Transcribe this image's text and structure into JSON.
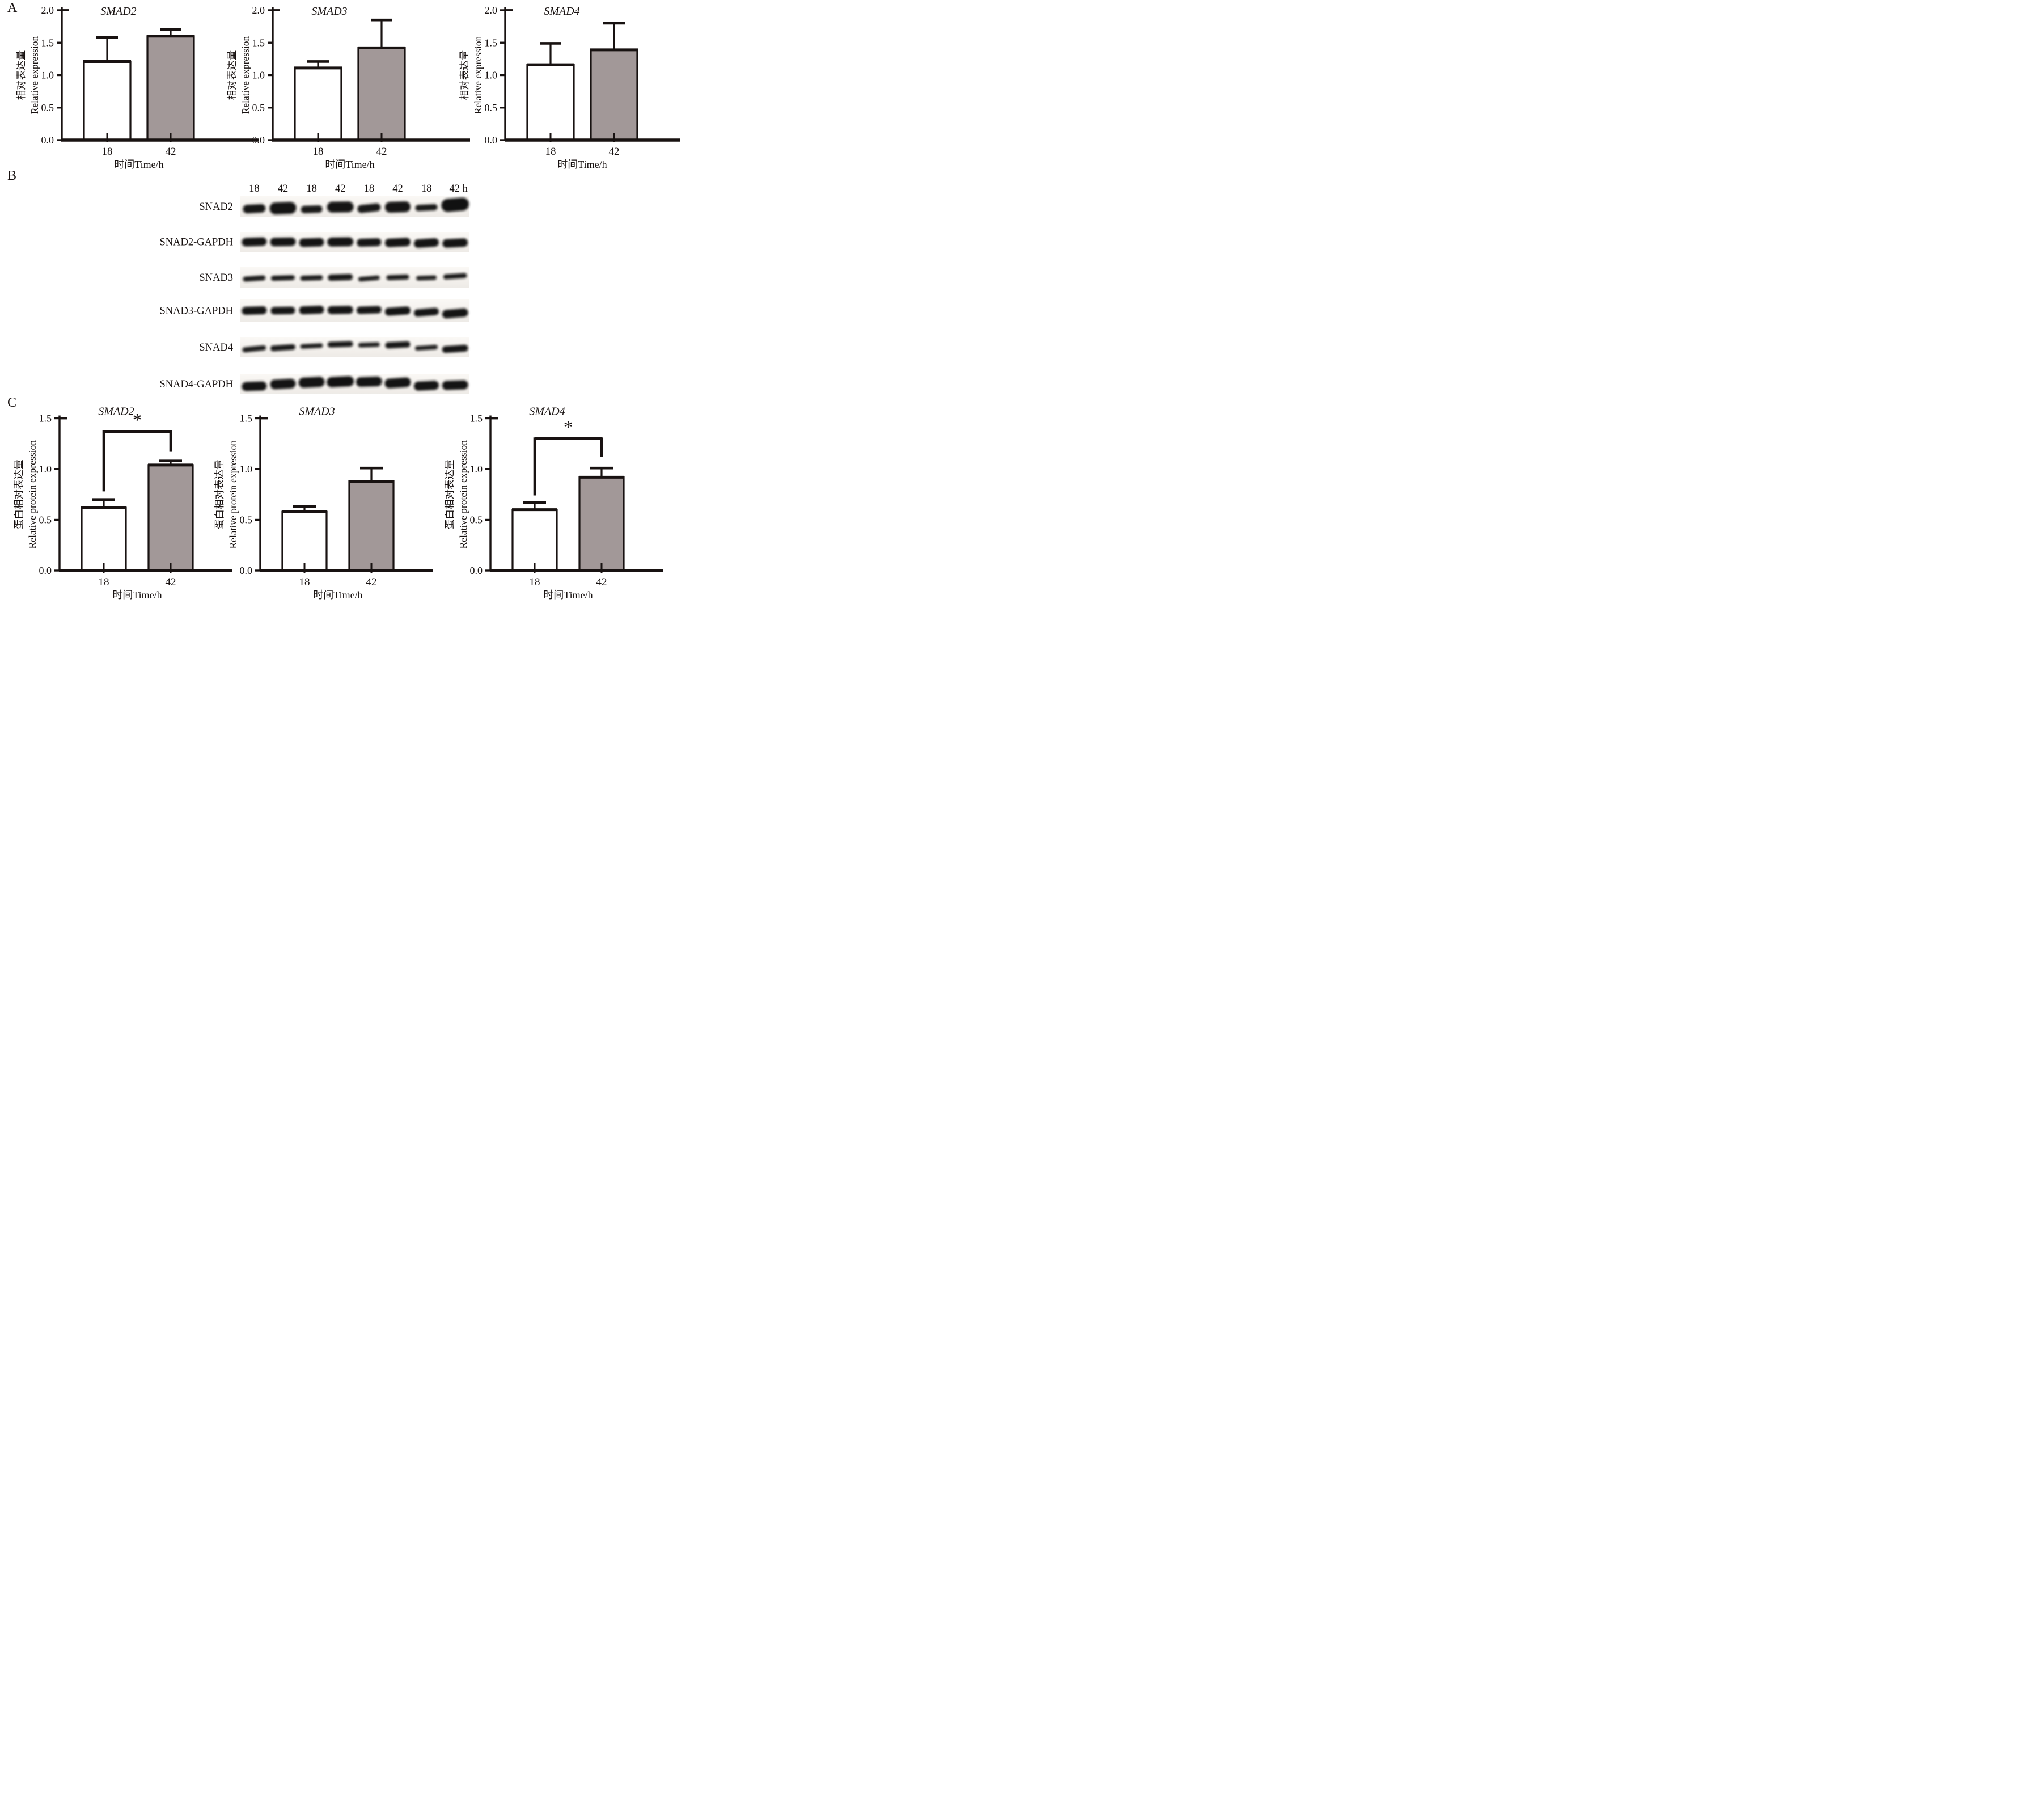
{
  "panels": {
    "a": "A",
    "b": "B",
    "c": "C"
  },
  "colors": {
    "ink": "#181211",
    "bar_fill_18": "#ffffff",
    "bar_fill_42": "#a29898",
    "blot_bg_light": "#faf8f5",
    "blot_bg_dark": "#eeebe7",
    "band": "#0b0908"
  },
  "chart_data": [
    {
      "id": "a-smad2",
      "panel": "A",
      "type": "bar",
      "title": "SMAD2",
      "categories": [
        "18",
        "42"
      ],
      "values": [
        1.21,
        1.6
      ],
      "errors_plus": [
        0.37,
        0.1
      ],
      "ylim": [
        0,
        2.0
      ],
      "yticks": [
        "0.0",
        "0.5",
        "1.0",
        "1.5",
        "2.0"
      ],
      "xlabel": "时间Time/h",
      "ylabel_cn": "相对表达量",
      "ylabel_en": "Relative expression",
      "significance": null
    },
    {
      "id": "a-smad3",
      "panel": "A",
      "type": "bar",
      "title": "SMAD3",
      "categories": [
        "18",
        "42"
      ],
      "values": [
        1.11,
        1.42
      ],
      "errors_plus": [
        0.1,
        0.43
      ],
      "ylim": [
        0,
        2.0
      ],
      "yticks": [
        "0.0",
        "0.5",
        "1.0",
        "1.5",
        "2.0"
      ],
      "xlabel": "时间Time/h",
      "ylabel_cn": "相对表达量",
      "ylabel_en": "Relative expression",
      "significance": null
    },
    {
      "id": "a-smad4",
      "panel": "A",
      "type": "bar",
      "title": "SMAD4",
      "categories": [
        "18",
        "42"
      ],
      "values": [
        1.16,
        1.39
      ],
      "errors_plus": [
        0.33,
        0.41
      ],
      "ylim": [
        0,
        2.0
      ],
      "yticks": [
        "0.0",
        "0.5",
        "1.0",
        "1.5",
        "2.0"
      ],
      "xlabel": "时间Time/h",
      "ylabel_cn": "相对表达量",
      "ylabel_en": "Relative expression",
      "significance": null
    },
    {
      "id": "c-smad2",
      "panel": "C",
      "type": "bar",
      "title": "SMAD2",
      "categories": [
        "18",
        "42"
      ],
      "values": [
        0.62,
        1.04
      ],
      "errors_plus": [
        0.08,
        0.04
      ],
      "ylim": [
        0,
        1.5
      ],
      "yticks": [
        "0.0",
        "0.5",
        "1.0",
        "1.5"
      ],
      "xlabel": "时间Time/h",
      "ylabel_cn": "蛋白相对表达量",
      "ylabel_en": "Relative protein expression",
      "significance": {
        "label": "*",
        "bracket_y": 1.37,
        "left_drop_to": 0.78,
        "right_drop_to": 1.17
      }
    },
    {
      "id": "c-smad3",
      "panel": "C",
      "type": "bar",
      "title": "SMAD3",
      "categories": [
        "18",
        "42"
      ],
      "values": [
        0.58,
        0.88
      ],
      "errors_plus": [
        0.05,
        0.13
      ],
      "ylim": [
        0,
        1.5
      ],
      "yticks": [
        "0.0",
        "0.5",
        "1.0",
        "1.5"
      ],
      "xlabel": "时间Time/h",
      "ylabel_cn": "蛋白相对表达量",
      "ylabel_en": "Relative protein expression",
      "significance": null
    },
    {
      "id": "c-smad4",
      "panel": "C",
      "type": "bar",
      "title": "SMAD4",
      "categories": [
        "18",
        "42"
      ],
      "values": [
        0.6,
        0.92
      ],
      "errors_plus": [
        0.07,
        0.09
      ],
      "ylim": [
        0,
        1.5
      ],
      "yticks": [
        "0.0",
        "0.5",
        "1.0",
        "1.5"
      ],
      "xlabel": "时间Time/h",
      "ylabel_cn": "蛋白相对表达量",
      "ylabel_en": "Relative protein expression",
      "significance": {
        "label": "*",
        "bracket_y": 1.3,
        "left_drop_to": 0.74,
        "right_drop_to": 1.12
      }
    }
  ],
  "western_blots": {
    "lane_labels": [
      "18",
      "42",
      "18",
      "42",
      "18",
      "42",
      "18",
      "42 h"
    ],
    "rows": [
      {
        "label": "SNAD2",
        "bands": [
          [
            4,
            40,
            15,
            -3,
            0.96
          ],
          [
            3,
            47,
            21,
            -2,
            0.97
          ],
          [
            5,
            38,
            13,
            -2,
            0.95
          ],
          [
            1,
            47,
            19,
            -1,
            0.97
          ],
          [
            3,
            41,
            14,
            -6,
            0.95
          ],
          [
            1,
            45,
            19,
            -2,
            0.97
          ],
          [
            2,
            39,
            11,
            -3,
            0.94
          ],
          [
            -3,
            49,
            23,
            -5,
            0.98
          ]
        ]
      },
      {
        "label": "SNAD2-GAPDH",
        "bands": [
          [
            0,
            44,
            15,
            -2,
            0.97
          ],
          [
            0,
            45,
            15,
            -1,
            0.97
          ],
          [
            1,
            44,
            15,
            -2,
            0.97
          ],
          [
            0,
            46,
            16,
            -1,
            0.97
          ],
          [
            1,
            43,
            14,
            -2,
            0.96
          ],
          [
            1,
            45,
            15,
            -3,
            0.97
          ],
          [
            2,
            44,
            15,
            -4,
            0.97
          ],
          [
            2,
            45,
            15,
            -3,
            0.97
          ]
        ]
      },
      {
        "label": "SNAD3",
        "bands": [
          [
            2,
            40,
            9,
            -4,
            0.93
          ],
          [
            1,
            42,
            9,
            -2,
            0.94
          ],
          [
            1,
            40,
            9,
            -2,
            0.93
          ],
          [
            0,
            44,
            11,
            -2,
            0.95
          ],
          [
            2,
            38,
            8,
            -5,
            0.92
          ],
          [
            0,
            40,
            9,
            -2,
            0.94
          ],
          [
            1,
            36,
            8,
            -2,
            0.92
          ],
          [
            -2,
            42,
            9,
            -4,
            0.94
          ]
        ]
      },
      {
        "label": "SNAD3-GAPDH",
        "bands": [
          [
            0,
            44,
            14,
            -2,
            0.97
          ],
          [
            0,
            43,
            13,
            -1,
            0.96
          ],
          [
            -1,
            44,
            14,
            -2,
            0.97
          ],
          [
            -1,
            45,
            14,
            -1,
            0.97
          ],
          [
            -1,
            44,
            13,
            -2,
            0.96
          ],
          [
            1,
            45,
            14,
            -4,
            0.97
          ],
          [
            3,
            44,
            13,
            -5,
            0.96
          ],
          [
            5,
            46,
            15,
            -5,
            0.97
          ]
        ]
      },
      {
        "label": "SNAD4",
        "bands": [
          [
            3,
            42,
            9,
            -6,
            0.93
          ],
          [
            1,
            44,
            10,
            -4,
            0.94
          ],
          [
            -2,
            40,
            8,
            -3,
            0.92
          ],
          [
            -5,
            45,
            10,
            -2,
            0.95
          ],
          [
            -4,
            38,
            8,
            -2,
            0.92
          ],
          [
            -4,
            44,
            11,
            -3,
            0.95
          ],
          [
            1,
            40,
            8,
            -4,
            0.92
          ],
          [
            3,
            46,
            12,
            -4,
            0.96
          ]
        ]
      },
      {
        "label": "SNAD4-GAPDH",
        "bands": [
          [
            4,
            44,
            16,
            -2,
            0.97
          ],
          [
            0,
            45,
            17,
            -3,
            0.97
          ],
          [
            -3,
            46,
            18,
            -3,
            0.97
          ],
          [
            -4,
            48,
            18,
            -3,
            0.98
          ],
          [
            -4,
            46,
            17,
            -2,
            0.97
          ],
          [
            -2,
            46,
            17,
            -4,
            0.97
          ],
          [
            3,
            44,
            16,
            -3,
            0.97
          ],
          [
            2,
            46,
            16,
            -2,
            0.97
          ]
        ]
      }
    ]
  }
}
